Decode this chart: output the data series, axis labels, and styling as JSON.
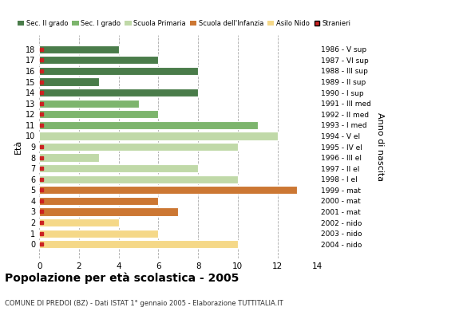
{
  "ages": [
    18,
    17,
    16,
    15,
    14,
    13,
    12,
    11,
    10,
    9,
    8,
    7,
    6,
    5,
    4,
    3,
    2,
    1,
    0
  ],
  "years": [
    "1986 - V sup",
    "1987 - VI sup",
    "1988 - III sup",
    "1989 - II sup",
    "1990 - I sup",
    "1991 - III med",
    "1992 - II med",
    "1993 - I med",
    "1994 - V el",
    "1995 - IV el",
    "1996 - III el",
    "1997 - II el",
    "1998 - I el",
    "1999 - mat",
    "2000 - mat",
    "2001 - mat",
    "2002 - nido",
    "2003 - nido",
    "2004 - nido"
  ],
  "values": [
    4,
    6,
    8,
    3,
    8,
    5,
    6,
    11,
    12,
    10,
    3,
    8,
    10,
    13,
    6,
    7,
    4,
    6,
    10
  ],
  "bar_colors": [
    "#4a7c4a",
    "#4a7c4a",
    "#4a7c4a",
    "#4a7c4a",
    "#4a7c4a",
    "#7db56d",
    "#7db56d",
    "#7db56d",
    "#c0d9a8",
    "#c0d9a8",
    "#c0d9a8",
    "#c0d9a8",
    "#c0d9a8",
    "#cc7733",
    "#cc7733",
    "#cc7733",
    "#f5d888",
    "#f5d888",
    "#f5d888"
  ],
  "stranieri_values": [
    1,
    1,
    1,
    1,
    1,
    1,
    1,
    1,
    0,
    1,
    1,
    1,
    1,
    1,
    1,
    1,
    1,
    1,
    1
  ],
  "legend_labels": [
    "Sec. II grado",
    "Sec. I grado",
    "Scuola Primaria",
    "Scuola dell'Infanzia",
    "Asilo Nido",
    "Stranieri"
  ],
  "legend_colors": [
    "#4a7c4a",
    "#7db56d",
    "#c0d9a8",
    "#cc7733",
    "#f5d888",
    "#cc2222"
  ],
  "title": "Popolazione per età scolastica - 2005",
  "subtitle": "COMUNE DI PREDOI (BZ) - Dati ISTAT 1° gennaio 2005 - Elaborazione TUTTITALIA.IT",
  "ylabel": "Età",
  "ylabel2": "Anno di nascita",
  "xlim": [
    0,
    14
  ],
  "xticks": [
    0,
    2,
    4,
    6,
    8,
    10,
    12,
    14
  ],
  "bg_color": "#ffffff",
  "bar_height": 0.75,
  "stranieri_color": "#cc2222"
}
